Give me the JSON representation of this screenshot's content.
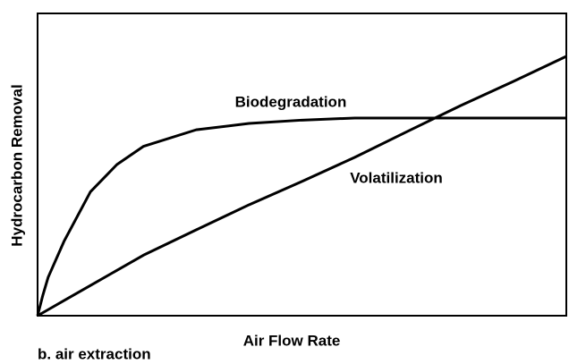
{
  "chart_data": {
    "type": "line",
    "x": [
      0,
      0.01,
      0.02,
      0.05,
      0.1,
      0.15,
      0.2,
      0.3,
      0.4,
      0.5,
      0.6,
      0.7,
      0.8,
      0.9,
      1.0
    ],
    "series": [
      {
        "name": "Biodegradation",
        "color": "#000000",
        "values": [
          0,
          0.068,
          0.127,
          0.246,
          0.41,
          0.5,
          0.56,
          0.615,
          0.636,
          0.647,
          0.654,
          0.654,
          0.654,
          0.654,
          0.654
        ]
      },
      {
        "name": "Volatilization",
        "color": "#000000",
        "values": [
          0,
          0.01,
          0.02,
          0.05,
          0.1,
          0.15,
          0.2,
          0.284,
          0.367,
          0.444,
          0.524,
          0.61,
          0.695,
          0.775,
          0.858
        ]
      }
    ],
    "xlim": [
      0,
      1
    ],
    "ylim": [
      0,
      1
    ],
    "x_label": "Air Flow Rate",
    "y_label": "Hydrocarbon Removal",
    "caption": "b. air extraction"
  }
}
